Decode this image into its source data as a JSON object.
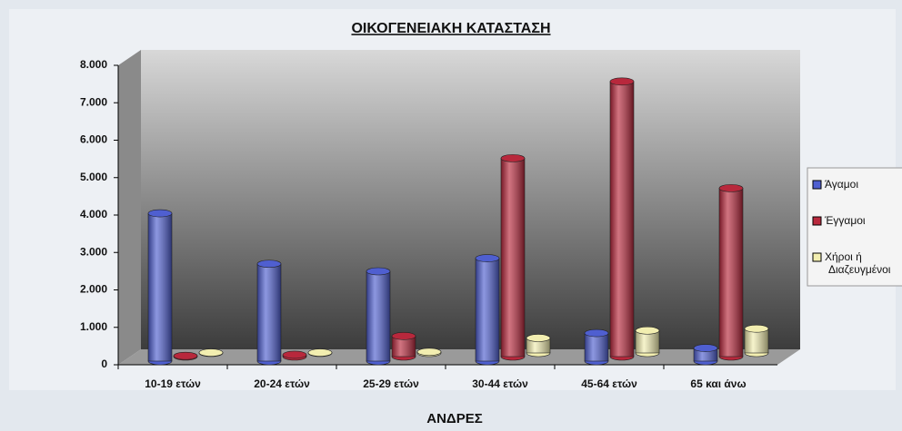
{
  "chart_data": {
    "type": "bar3d",
    "title": "ΟΙΚΟΓΕΝΕΙΑΚΗ ΚΑΤΑΣΤΑΣΗ",
    "x_label": "ΑΝΔΡΕΣ",
    "categories": [
      "10-19 ετών",
      "20-24 ετών",
      "25-29 ετών",
      "30-44 ετών",
      "45-64 ετών",
      "65 και άνω"
    ],
    "series": [
      {
        "name": "Άγαμοι",
        "color": "#4f5fd0",
        "values": [
          3950,
          2600,
          2400,
          2750,
          750,
          350
        ]
      },
      {
        "name": "Έγγαμοι",
        "color": "#b8283c",
        "values": [
          20,
          50,
          550,
          5300,
          7350,
          4500
        ]
      },
      {
        "name": "Χήροι ή Διαζευγμένοι",
        "color": "#f2eeb0",
        "values": [
          10,
          10,
          30,
          400,
          600,
          650
        ]
      }
    ],
    "ylim": [
      0,
      8000
    ],
    "yticks": [
      0,
      {
        "value": 1000,
        "label": "1.000"
      },
      {
        "value": 2000,
        "label": "2.000"
      },
      {
        "value": 3000,
        "label": "3.000"
      },
      {
        "value": 4000,
        "label": "4.000"
      },
      {
        "value": 5000,
        "label": "5.000"
      },
      {
        "value": 6000,
        "label": "6.000"
      },
      {
        "value": 7000,
        "label": "7.000"
      },
      {
        "value": 8000,
        "label": "8.000"
      }
    ],
    "legend": "right"
  }
}
